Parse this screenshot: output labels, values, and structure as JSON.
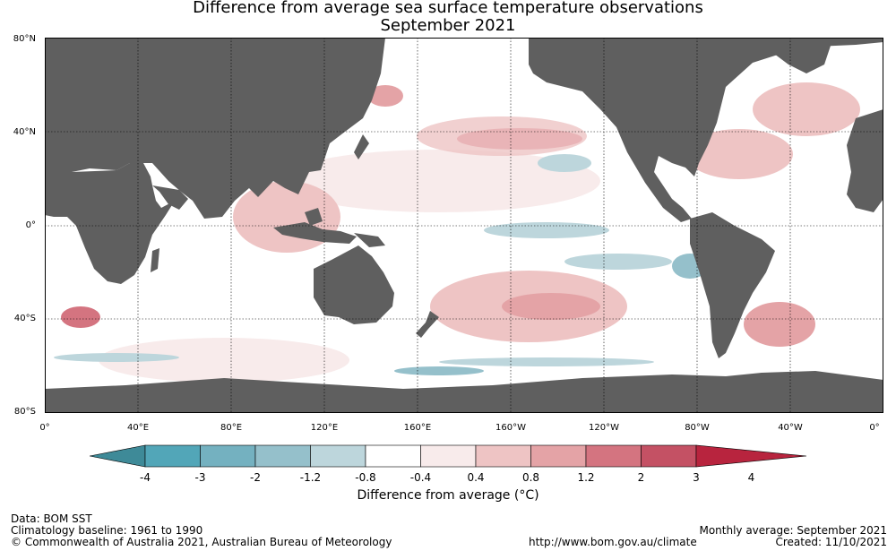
{
  "title": {
    "line1": "Difference from average sea surface temperature observations",
    "line2": "September 2021"
  },
  "map": {
    "land_color": "#5f5f5f",
    "ocean_baseline_color": "#ffffff",
    "grid": true,
    "lat_labels": [
      "80°N",
      "40°N",
      "0°",
      "40°S",
      "80°S"
    ],
    "lon_labels": [
      "0°",
      "40°E",
      "80°E",
      "120°E",
      "160°E",
      "160°W",
      "120°W",
      "80°W",
      "40°W",
      "0°"
    ]
  },
  "colorbar": {
    "label": "Difference from average (°C)",
    "ticks": [
      "-4",
      "-3",
      "-2",
      "-1.2",
      "-0.8",
      "-0.4",
      "0.4",
      "0.8",
      "1.2",
      "2",
      "3",
      "4"
    ],
    "colors": [
      "#3e8a98",
      "#52a6b8",
      "#74b1c0",
      "#95c0cb",
      "#bdd6dc",
      "#ffffff",
      "#f8ebeb",
      "#eec4c4",
      "#e4a3a6",
      "#d47480",
      "#c45164",
      "#b8243e"
    ]
  },
  "footer": {
    "data_source": "Data: BOM SST",
    "baseline": "Climatology baseline: 1961 to 1990",
    "copyright": "© Commonwealth of Australia 2021, Australian Bureau of Meteorology",
    "monthly": "Monthly average: September 2021",
    "url": "http://www.bom.gov.au/climate",
    "created": "Created: 11/10/2021"
  }
}
